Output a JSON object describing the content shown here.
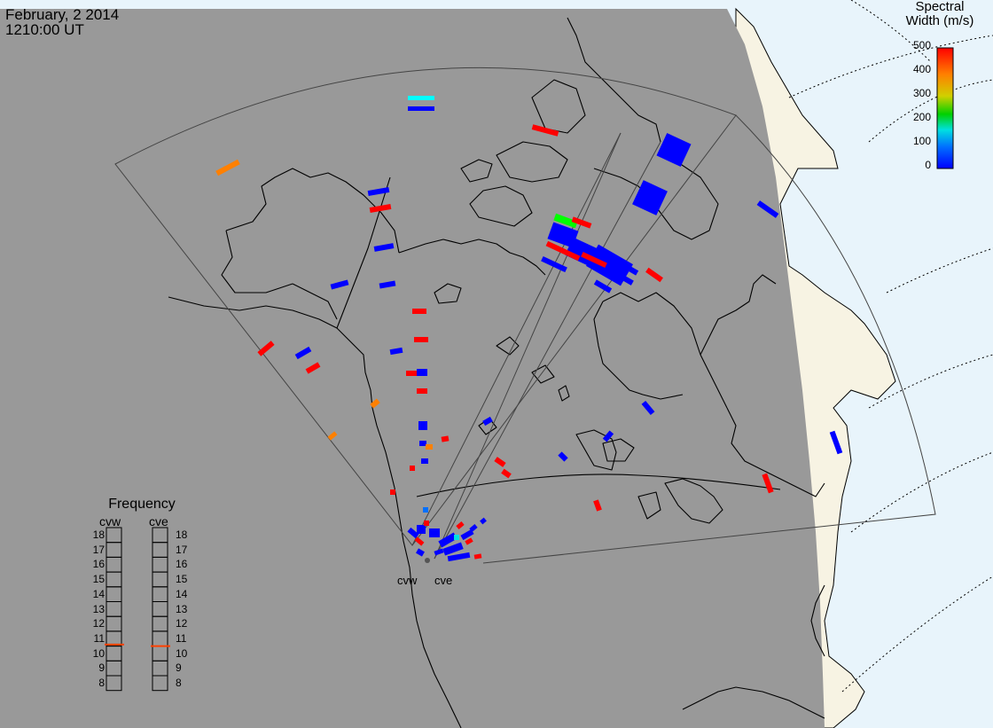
{
  "header": {
    "date": "February, 2 2014",
    "time": "1210:00 UT"
  },
  "colorbar": {
    "title_line1": "Spectral",
    "title_line2": "Width (m/s)",
    "ticks": [
      "500",
      "400",
      "300",
      "200",
      "100",
      "0"
    ],
    "range": [
      0,
      500
    ],
    "colors": [
      "#0000ff",
      "#0070ff",
      "#00e0e0",
      "#00d000",
      "#d0d000",
      "#ff8000",
      "#ff0000"
    ]
  },
  "frequency_panel": {
    "title": "Frequency",
    "radars": [
      {
        "name": "cvw",
        "value": 10.6
      },
      {
        "name": "cve",
        "value": 10.5
      }
    ],
    "scale": [
      "18",
      "17",
      "16",
      "15",
      "14",
      "13",
      "12",
      "11",
      "10",
      "9",
      "8"
    ],
    "marker_color": "#ff4000"
  },
  "stations": [
    {
      "name": "cvw"
    },
    {
      "name": "cve"
    }
  ],
  "colors": {
    "night_shade": "#999999",
    "day_ocean": "#e8f4fb",
    "day_land": "#f7f3e3",
    "coast": "#000000"
  }
}
